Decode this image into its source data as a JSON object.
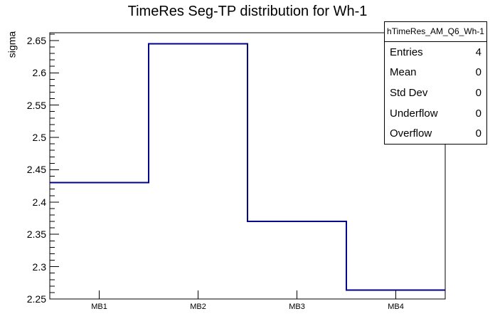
{
  "window": {
    "background_color": "#ffffff"
  },
  "stats_box": {
    "title": "hTimeRes_AM_Q6_Wh-1",
    "rows": [
      {
        "label": "Entries",
        "value": "4"
      },
      {
        "label": "Mean",
        "value": "0"
      },
      {
        "label": "Std Dev",
        "value": "0"
      },
      {
        "label": "Underflow",
        "value": "0"
      },
      {
        "label": "Overflow",
        "value": "0"
      }
    ]
  },
  "colors": {
    "histogram_line": "#00008b",
    "frame_line": "#000000",
    "text": "#000000",
    "background": "#ffffff"
  },
  "chart_data": {
    "type": "line",
    "style": "step-histogram",
    "title": "TimeRes Seg-TP distribution for Wh-1",
    "xlabel": "",
    "ylabel": "sigma",
    "categories": [
      "MB1",
      "MB2",
      "MB3",
      "MB4"
    ],
    "values": [
      2.43,
      2.645,
      2.37,
      2.264
    ],
    "ylim": [
      2.25,
      2.662
    ],
    "y_major_ticks": [
      2.25,
      2.3,
      2.35,
      2.4,
      2.45,
      2.5,
      2.55,
      2.6,
      2.65
    ],
    "y_minor_step": 0.01,
    "grid": false,
    "legend": false
  }
}
